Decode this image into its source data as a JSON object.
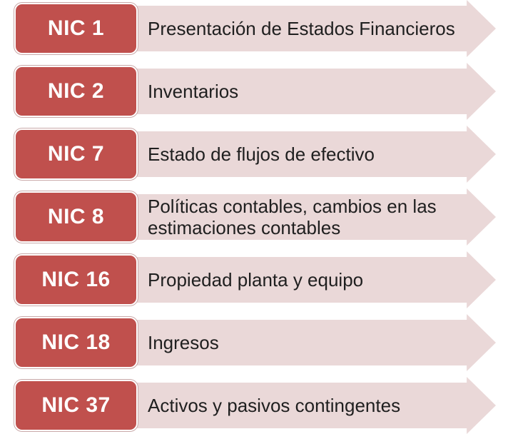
{
  "colors": {
    "badge": "#c0504d",
    "arrow": "#ead8d8",
    "text": "#1f1f1f",
    "badge_text": "#ffffff"
  },
  "items": [
    {
      "code": "NIC 1",
      "label": "Presentación de Estados Financieros"
    },
    {
      "code": "NIC 2",
      "label": "Inventarios"
    },
    {
      "code": "NIC 7",
      "label": "Estado de flujos de efectivo"
    },
    {
      "code": "NIC 8",
      "label": "Políticas contables, cambios en las estimaciones contables"
    },
    {
      "code": "NIC 16",
      "label": "Propiedad planta y equipo"
    },
    {
      "code": "NIC 18",
      "label": "Ingresos"
    },
    {
      "code": "NIC 37",
      "label": "Activos y pasivos contingentes"
    }
  ]
}
